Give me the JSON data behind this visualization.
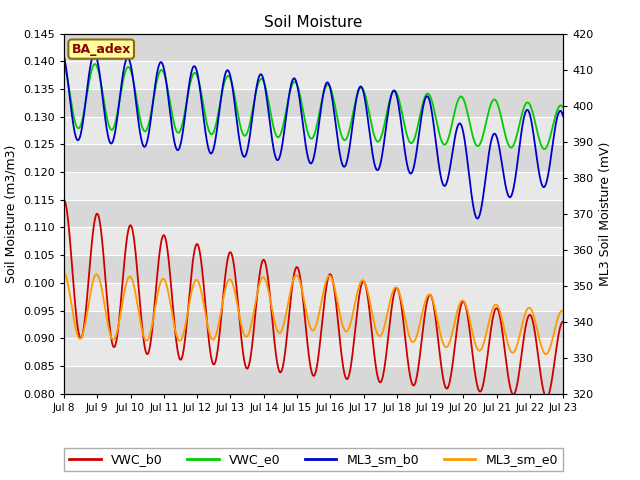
{
  "title": "Soil Moisture",
  "ylabel_left": "Soil Moisture (m3/m3)",
  "ylabel_right": "ML3 Soil Moisture (mV)",
  "ylim_left": [
    0.08,
    0.145
  ],
  "ylim_right": [
    320,
    420
  ],
  "yticks_left": [
    0.08,
    0.085,
    0.09,
    0.095,
    0.1,
    0.105,
    0.11,
    0.115,
    0.12,
    0.125,
    0.13,
    0.135,
    0.14,
    0.145
  ],
  "yticks_right": [
    320,
    330,
    340,
    350,
    360,
    370,
    380,
    390,
    400,
    410,
    420
  ],
  "xtick_labels": [
    "Jul 8",
    "Jul 9",
    "Jul 10",
    "Jul 11",
    "Jul 12",
    "Jul 13",
    "Jul 14",
    "Jul 15",
    "Jul 16",
    "Jul 17",
    "Jul 18",
    "Jul 19",
    "Jul 20",
    "Jul 21",
    "Jul 22",
    "Jul 23"
  ],
  "colors": {
    "VWC_b0": "#cc0000",
    "VWC_e0": "#00cc00",
    "ML3_sm_b0": "#0000cc",
    "ML3_sm_e0": "#ff9900"
  },
  "background_color": "#ffffff",
  "plot_bg_color": "#d8d8d8",
  "stripe_light": "#e8e8e8",
  "legend_label": "BA_adex",
  "legend_label_color": "#8b0000",
  "legend_bg": "#ffff99",
  "legend_border": "#8b6914"
}
